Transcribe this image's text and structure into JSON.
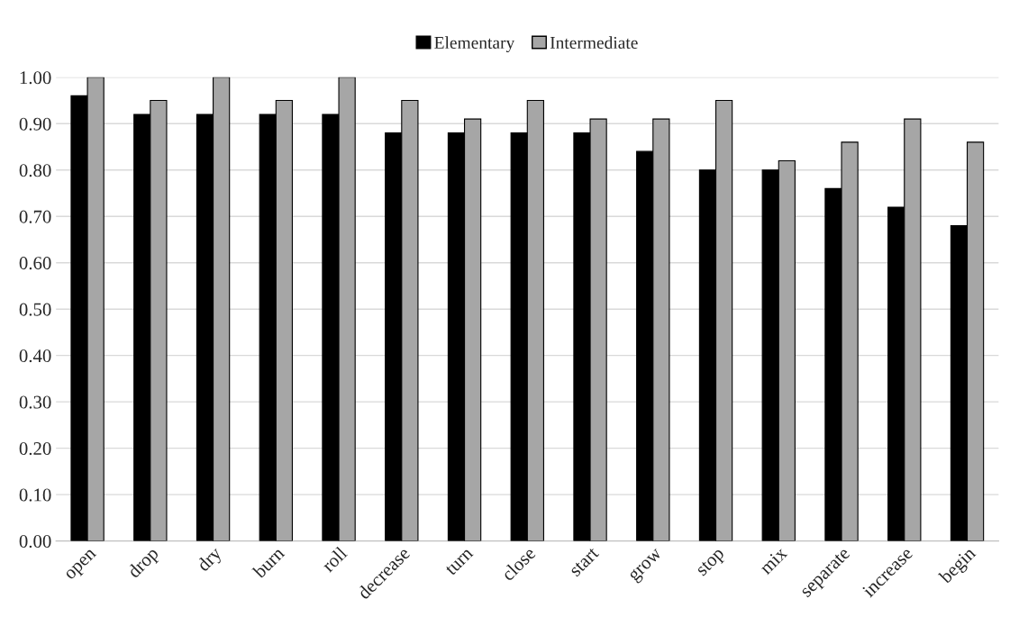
{
  "chart_data": {
    "type": "bar",
    "categories": [
      "open",
      "drop",
      "dry",
      "burn",
      "roll",
      "decrease",
      "turn",
      "close",
      "start",
      "grow",
      "stop",
      "mix",
      "separate",
      "increase",
      "begin"
    ],
    "series": [
      {
        "name": "Elementary",
        "color": "#000000",
        "values": [
          0.96,
          0.92,
          0.92,
          0.92,
          0.92,
          0.88,
          0.88,
          0.88,
          0.88,
          0.84,
          0.8,
          0.8,
          0.76,
          0.72,
          0.68
        ]
      },
      {
        "name": "Intermediate",
        "color": "#a6a6a6",
        "values": [
          1.0,
          0.95,
          1.0,
          0.95,
          1.0,
          0.95,
          0.91,
          0.95,
          0.91,
          0.91,
          0.95,
          0.82,
          0.86,
          0.91,
          0.86
        ]
      }
    ],
    "ylim": [
      0,
      1.0
    ],
    "yticks": [
      {
        "value": 0,
        "label": "0.00"
      },
      {
        "value": 0.1,
        "label": "0.10"
      },
      {
        "value": 0.2,
        "label": "0.20"
      },
      {
        "value": 0.3,
        "label": "0.30"
      },
      {
        "value": 0.4,
        "label": "0.40"
      },
      {
        "value": 0.5,
        "label": "0.50"
      },
      {
        "value": 0.6,
        "label": "0.60"
      },
      {
        "value": 0.7,
        "label": "0.70"
      },
      {
        "value": 0.8,
        "label": "0.80"
      },
      {
        "value": 0.9,
        "label": "0.90"
      },
      {
        "value": 1.0,
        "label": "1.00"
      }
    ],
    "grid": "y",
    "legend": "top"
  }
}
